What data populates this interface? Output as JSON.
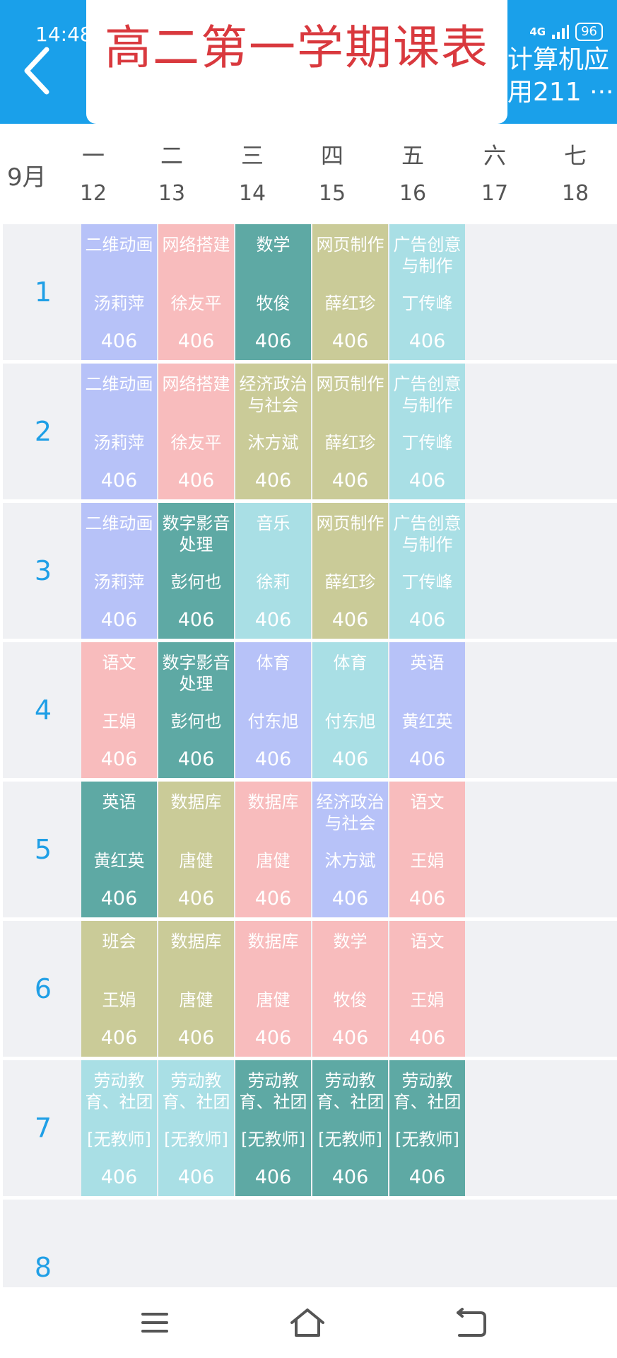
{
  "status": {
    "time": "14:48",
    "network": "4G",
    "battery": "96"
  },
  "header": {
    "title": "高二第一学期课表",
    "class_line1": "计算机应",
    "class_line2": "用211 ···"
  },
  "month": "9月",
  "days": [
    {
      "weekday": "一",
      "date": "12"
    },
    {
      "weekday": "二",
      "date": "13"
    },
    {
      "weekday": "三",
      "date": "14"
    },
    {
      "weekday": "四",
      "date": "15"
    },
    {
      "weekday": "五",
      "date": "16"
    },
    {
      "weekday": "六",
      "date": "17"
    },
    {
      "weekday": "七",
      "date": "18"
    }
  ],
  "periods": [
    "1",
    "2",
    "3",
    "4",
    "5",
    "6",
    "7",
    "8"
  ],
  "colors": {
    "lavender": "#b7c2f8",
    "pink": "#f8bcbd",
    "teal": "#5ea9a4",
    "olive": "#cacb98",
    "lightcyan": "#a9dfe5"
  },
  "schedule": [
    [
      {
        "subject": "二维动画",
        "teacher": "汤莉萍",
        "room": "406",
        "color": "lavender"
      },
      {
        "subject": "网络搭建",
        "teacher": "徐友平",
        "room": "406",
        "color": "pink"
      },
      {
        "subject": "数学",
        "teacher": "牧俊",
        "room": "406",
        "color": "teal"
      },
      {
        "subject": "网页制作",
        "teacher": "薛红珍",
        "room": "406",
        "color": "olive"
      },
      {
        "subject": "广告创意与制作",
        "teacher": "丁传峰",
        "room": "406",
        "color": "lightcyan"
      }
    ],
    [
      {
        "subject": "二维动画",
        "teacher": "汤莉萍",
        "room": "406",
        "color": "lavender"
      },
      {
        "subject": "网络搭建",
        "teacher": "徐友平",
        "room": "406",
        "color": "pink"
      },
      {
        "subject": "经济政治与社会",
        "teacher": "沐方斌",
        "room": "406",
        "color": "olive"
      },
      {
        "subject": "网页制作",
        "teacher": "薛红珍",
        "room": "406",
        "color": "olive"
      },
      {
        "subject": "广告创意与制作",
        "teacher": "丁传峰",
        "room": "406",
        "color": "lightcyan"
      }
    ],
    [
      {
        "subject": "二维动画",
        "teacher": "汤莉萍",
        "room": "406",
        "color": "lavender"
      },
      {
        "subject": "数字影音处理",
        "teacher": "彭何也",
        "room": "406",
        "color": "teal"
      },
      {
        "subject": "音乐",
        "teacher": "徐莉",
        "room": "406",
        "color": "lightcyan"
      },
      {
        "subject": "网页制作",
        "teacher": "薛红珍",
        "room": "406",
        "color": "olive"
      },
      {
        "subject": "广告创意与制作",
        "teacher": "丁传峰",
        "room": "406",
        "color": "lightcyan"
      }
    ],
    [
      {
        "subject": "语文",
        "teacher": "王娟",
        "room": "406",
        "color": "pink"
      },
      {
        "subject": "数字影音处理",
        "teacher": "彭何也",
        "room": "406",
        "color": "teal"
      },
      {
        "subject": "体育",
        "teacher": "付东旭",
        "room": "406",
        "color": "lavender"
      },
      {
        "subject": "体育",
        "teacher": "付东旭",
        "room": "406",
        "color": "lightcyan"
      },
      {
        "subject": "英语",
        "teacher": "黄红英",
        "room": "406",
        "color": "lavender"
      }
    ],
    [
      {
        "subject": "英语",
        "teacher": "黄红英",
        "room": "406",
        "color": "teal"
      },
      {
        "subject": "数据库",
        "teacher": "唐健",
        "room": "406",
        "color": "olive"
      },
      {
        "subject": "数据库",
        "teacher": "唐健",
        "room": "406",
        "color": "pink"
      },
      {
        "subject": "经济政治与社会",
        "teacher": "沐方斌",
        "room": "406",
        "color": "lavender"
      },
      {
        "subject": "语文",
        "teacher": "王娟",
        "room": "406",
        "color": "pink"
      }
    ],
    [
      {
        "subject": "班会",
        "teacher": "王娟",
        "room": "406",
        "color": "olive"
      },
      {
        "subject": "数据库",
        "teacher": "唐健",
        "room": "406",
        "color": "olive"
      },
      {
        "subject": "数据库",
        "teacher": "唐健",
        "room": "406",
        "color": "pink"
      },
      {
        "subject": "数学",
        "teacher": "牧俊",
        "room": "406",
        "color": "pink"
      },
      {
        "subject": "语文",
        "teacher": "王娟",
        "room": "406",
        "color": "pink"
      }
    ],
    [
      {
        "subject": "劳动教育、社团",
        "teacher": "[无教师]",
        "room": "406",
        "color": "lightcyan"
      },
      {
        "subject": "劳动教育、社团",
        "teacher": "[无教师]",
        "room": "406",
        "color": "lightcyan"
      },
      {
        "subject": "劳动教育、社团",
        "teacher": "[无教师]",
        "room": "406",
        "color": "teal"
      },
      {
        "subject": "劳动教育、社团",
        "teacher": "[无教师]",
        "room": "406",
        "color": "teal"
      },
      {
        "subject": "劳动教育、社团",
        "teacher": "[无教师]",
        "room": "406",
        "color": "teal"
      }
    ]
  ],
  "nav": {
    "menu_icon": "menu-icon",
    "home_icon": "home-icon",
    "back_icon": "back-nav-icon"
  }
}
